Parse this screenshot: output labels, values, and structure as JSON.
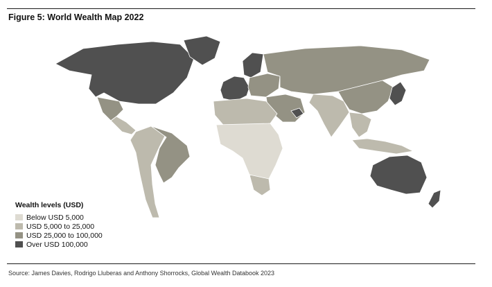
{
  "figure": {
    "title": "Figure 5: World Wealth Map 2022",
    "source": "Source: James Davies, Rodrigo Lluberas and Anthony Shorrocks, Global Wealth Databook 2023"
  },
  "legend": {
    "title": "Wealth levels (USD)",
    "items": [
      {
        "label": "Below USD 5,000",
        "color": "#dedbd2"
      },
      {
        "label": "USD 5,000 to 25,000",
        "color": "#bdbaad"
      },
      {
        "label": "USD 25,000 to 100,000",
        "color": "#949284"
      },
      {
        "label": "Over USD 100,000",
        "color": "#505050"
      }
    ]
  },
  "map_regions": [
    {
      "name": "north-america-high",
      "level": 3
    },
    {
      "name": "greenland",
      "level": 3
    },
    {
      "name": "mexico",
      "level": 2
    },
    {
      "name": "central-america",
      "level": 1
    },
    {
      "name": "south-america-east",
      "level": 2
    },
    {
      "name": "south-america-west",
      "level": 1
    },
    {
      "name": "western-europe",
      "level": 3
    },
    {
      "name": "scandinavia",
      "level": 3
    },
    {
      "name": "eastern-europe",
      "level": 2
    },
    {
      "name": "russia-central-asia",
      "level": 2
    },
    {
      "name": "middle-east",
      "level": 2
    },
    {
      "name": "gulf-states",
      "level": 3
    },
    {
      "name": "north-africa",
      "level": 1
    },
    {
      "name": "sub-saharan-africa",
      "level": 0
    },
    {
      "name": "southern-africa",
      "level": 1
    },
    {
      "name": "south-asia",
      "level": 1
    },
    {
      "name": "china",
      "level": 2
    },
    {
      "name": "japan-korea",
      "level": 3
    },
    {
      "name": "southeast-asia",
      "level": 1
    },
    {
      "name": "indonesia",
      "level": 1
    },
    {
      "name": "australia",
      "level": 3
    },
    {
      "name": "new-zealand",
      "level": 3
    }
  ]
}
